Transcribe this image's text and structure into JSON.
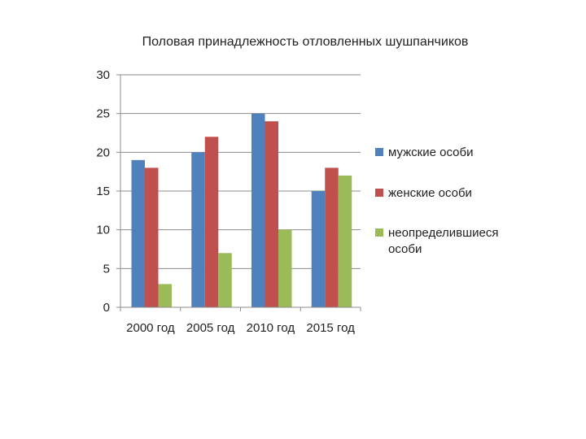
{
  "chart_data": {
    "type": "bar",
    "title": "Половая принадлежность отловленных шушпанчиков",
    "categories": [
      "2000 год",
      "2005 год",
      "2010 год",
      "2015 год"
    ],
    "series": [
      {
        "name": "мужские особи",
        "values": [
          19,
          20,
          25,
          15
        ],
        "color": "#4f81bd"
      },
      {
        "name": "женские особи",
        "values": [
          18,
          22,
          24,
          18
        ],
        "color": "#c0504d"
      },
      {
        "name": "неопределившиеся особи",
        "values": [
          3,
          7,
          10,
          17
        ],
        "color": "#9bbb59"
      }
    ],
    "ylim": [
      0,
      30
    ],
    "yticks": [
      "0",
      "5",
      "10",
      "15",
      "20",
      "25",
      "30"
    ],
    "grid": true,
    "legend_position": "right"
  }
}
